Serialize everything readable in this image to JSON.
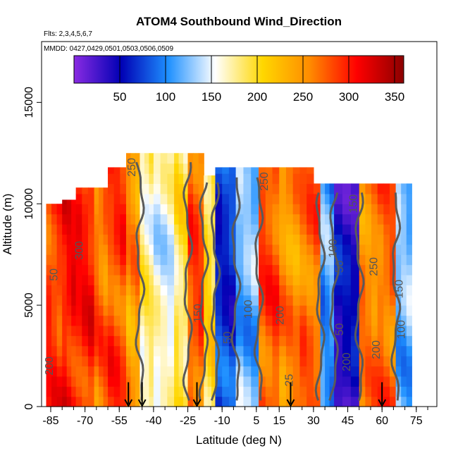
{
  "chart_data": {
    "type": "heatmap",
    "title": "ATOM4 Southbound Wind_Direction",
    "subtitle_flights": "Flts: 2,3,4,5,6,7",
    "subtitle_dates": "MMDD: 0427,0429,0501,0503,0506,0509",
    "xlabel": "Latitude (deg N)",
    "ylabel": "Altitude (m)",
    "xlim": [
      -89,
      84
    ],
    "ylim": [
      0,
      18000
    ],
    "x_ticks": [
      -85,
      -70,
      -55,
      -40,
      -25,
      -10,
      5,
      15,
      30,
      45,
      60,
      75
    ],
    "y_ticks": [
      0,
      5000,
      10000,
      15000
    ],
    "colorbar": {
      "range": [
        0,
        360
      ],
      "tick_values": [
        50,
        100,
        150,
        200,
        250,
        300,
        350
      ],
      "colors": [
        "#8a2be2",
        "#0000b4",
        "#1e90ff",
        "#ffffff",
        "#ffd700",
        "#ff8c00",
        "#ff0000",
        "#8b0000"
      ]
    },
    "wind_direction_bands": [
      {
        "lat_min": -87,
        "lat_max": -80,
        "value": 290
      },
      {
        "lat_min": -80,
        "lat_max": -74,
        "value": 305
      },
      {
        "lat_min": -74,
        "lat_max": -66,
        "value": 300
      },
      {
        "lat_min": -66,
        "lat_max": -60,
        "value": 270
      },
      {
        "lat_min": -60,
        "lat_max": -52,
        "value": 285
      },
      {
        "lat_min": -52,
        "lat_max": -46,
        "value": 250
      },
      {
        "lat_min": -46,
        "lat_max": -40,
        "value": 175
      },
      {
        "lat_min": -40,
        "lat_max": -31,
        "value": 155
      },
      {
        "lat_min": -31,
        "lat_max": -25,
        "value": 190
      },
      {
        "lat_min": -25,
        "lat_max": -18,
        "value": 280
      },
      {
        "lat_min": -18,
        "lat_max": -13,
        "value": 200
      },
      {
        "lat_min": -13,
        "lat_max": -4,
        "value": 70
      },
      {
        "lat_min": -4,
        "lat_max": 6,
        "value": 120
      },
      {
        "lat_min": 6,
        "lat_max": 15,
        "value": 280
      },
      {
        "lat_min": 15,
        "lat_max": 24,
        "value": 255
      },
      {
        "lat_min": 24,
        "lat_max": 33,
        "value": 270
      },
      {
        "lat_min": 33,
        "lat_max": 39,
        "value": 110
      },
      {
        "lat_min": 39,
        "lat_max": 50,
        "value": 45
      },
      {
        "lat_min": 50,
        "lat_max": 58,
        "value": 260
      },
      {
        "lat_min": 58,
        "lat_max": 66,
        "value": 270
      },
      {
        "lat_min": 66,
        "lat_max": 73,
        "value": 120
      }
    ],
    "profile_tops_m": [
      {
        "lat_min": -87,
        "lat_max": -80,
        "alt_max": 10000
      },
      {
        "lat_min": -80,
        "lat_max": -74,
        "alt_max": 10200
      },
      {
        "lat_min": -74,
        "lat_max": -60,
        "alt_max": 10800
      },
      {
        "lat_min": -60,
        "lat_max": -53,
        "alt_max": 11800
      },
      {
        "lat_min": -53,
        "lat_max": -18,
        "alt_max": 12500
      },
      {
        "lat_min": -18,
        "lat_max": -13,
        "alt_max": 11400
      },
      {
        "lat_min": -13,
        "lat_max": 30,
        "alt_max": 11800
      },
      {
        "lat_min": 30,
        "lat_max": 73,
        "alt_max": 11000
      }
    ],
    "contour_labels": [
      {
        "text": "250",
        "lat": -48,
        "alt": 11800
      },
      {
        "text": "250",
        "lat": 10,
        "alt": 11100
      },
      {
        "text": "300",
        "lat": -71,
        "alt": 7700
      },
      {
        "text": "50",
        "lat": -82,
        "alt": 6500
      },
      {
        "text": "100",
        "lat": 40,
        "alt": 7800
      },
      {
        "text": "50",
        "lat": 43,
        "alt": 6900
      },
      {
        "text": "250",
        "lat": 58,
        "alt": 6900
      },
      {
        "text": "100",
        "lat": 3,
        "alt": 4800
      },
      {
        "text": "200",
        "lat": 17,
        "alt": 4500
      },
      {
        "text": "50",
        "lat": -6,
        "alt": 3400
      },
      {
        "text": "50",
        "lat": 43,
        "alt": 3800
      },
      {
        "text": "150",
        "lat": 69,
        "alt": 5800
      },
      {
        "text": "100",
        "lat": 70,
        "alt": 3800
      },
      {
        "text": "200",
        "lat": 59,
        "alt": 2800
      },
      {
        "text": "200",
        "lat": 46,
        "alt": 2200
      },
      {
        "text": "25",
        "lat": 21,
        "alt": 1300
      },
      {
        "text": "150",
        "lat": 49,
        "alt": 10000
      },
      {
        "text": "150",
        "lat": -19,
        "alt": 4600
      },
      {
        "text": "200",
        "lat": -84,
        "alt": 2000
      }
    ],
    "flight_markers_lat": [
      -51,
      -45,
      -21,
      20,
      60
    ]
  }
}
